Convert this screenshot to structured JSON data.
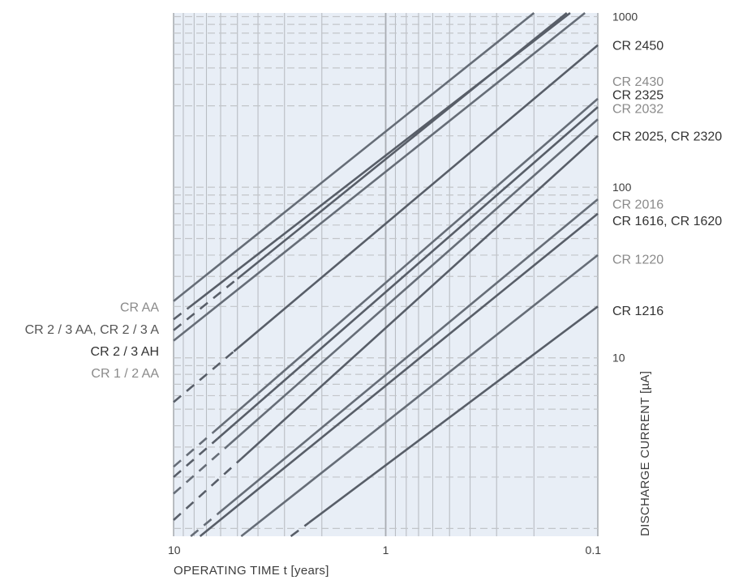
{
  "chart_data": {
    "type": "line",
    "x_scale": "log",
    "y_scale": "log",
    "x_reversed": true,
    "xlim": [
      10,
      0.1
    ],
    "ylim": [
      0.9,
      1050
    ],
    "grid": true,
    "title": "",
    "xlabel": "OPERATING TIME t [years]",
    "ylabel": "DISCHARGE CURRENT [µA]",
    "x_ticks": [
      {
        "value": 10,
        "label": "10"
      },
      {
        "value": 1,
        "label": "1"
      },
      {
        "value": 0.1,
        "label": "0.1"
      }
    ],
    "y_ticks": [
      {
        "value": 1000,
        "label": "1000"
      },
      {
        "value": 100,
        "label": "100"
      },
      {
        "value": 10,
        "label": "10"
      }
    ],
    "right_labels": [
      {
        "text": "CR 2450",
        "y": 680,
        "color": "#333333"
      },
      {
        "text": "CR 2430",
        "y": 420,
        "color": "#8a8a8a"
      },
      {
        "text": "CR 2325",
        "y": 350,
        "color": "#333333"
      },
      {
        "text": "CR 2032",
        "y": 290,
        "color": "#8a8a8a"
      },
      {
        "text": "CR 2025, CR 2320",
        "y": 200,
        "color": "#333333"
      },
      {
        "text": "CR 2016",
        "y": 80,
        "color": "#8a8a8a"
      },
      {
        "text": "CR 1616, CR 1620",
        "y": 64,
        "color": "#333333"
      },
      {
        "text": "CR 1220",
        "y": 38,
        "color": "#8a8a8a"
      },
      {
        "text": "CR 1216",
        "y": 19,
        "color": "#333333"
      }
    ],
    "left_labels": [
      {
        "text": "CR AA",
        "y": 20,
        "color": "#8a8a8a"
      },
      {
        "text": "CR 2 / 3 AA, CR 2 / 3 A",
        "y": 14.8,
        "color": "#555555"
      },
      {
        "text": "CR 2 / 3 AH",
        "y": 11,
        "color": "#333333"
      },
      {
        "text": "CR 1 / 2 AA",
        "y": 8.2,
        "color": "#8a8a8a"
      }
    ],
    "series": [
      {
        "color": "#666d77",
        "points": [
          [
            10,
            21.5
          ],
          [
            0.2,
            1050
          ]
        ],
        "dashed_until": null
      },
      {
        "color": "#585e68",
        "points": [
          [
            10,
            14.5
          ],
          [
            0.14,
            1050
          ]
        ],
        "dashed_until": 5.0
      },
      {
        "color": "#585e68",
        "points": [
          [
            10,
            16.8
          ],
          [
            0.135,
            1050
          ]
        ],
        "dashed_until": 8.5
      },
      {
        "color": "#666d77",
        "points": [
          [
            10,
            12.6
          ],
          [
            0.115,
            1050
          ]
        ],
        "dashed_until": null
      },
      {
        "color": "#585e68",
        "points": [
          [
            10,
            5.5
          ],
          [
            0.1,
            680
          ]
        ],
        "dashed_until": 5.2
      },
      {
        "color": "#666d77",
        "points": [
          [
            10,
            2.3
          ],
          [
            0.1,
            330
          ]
        ],
        "dashed_until": 6.5
      },
      {
        "color": "#585e68",
        "points": [
          [
            10,
            2.0
          ],
          [
            0.1,
            295
          ]
        ],
        "dashed_until": 6.2
      },
      {
        "color": "#666d77",
        "points": [
          [
            10,
            1.6
          ],
          [
            0.1,
            250
          ]
        ],
        "dashed_until": 5.5
      },
      {
        "color": "#585e68",
        "points": [
          [
            10,
            1.12
          ],
          [
            0.1,
            200
          ]
        ],
        "dashed_until": 4.8
      },
      {
        "color": "#666d77",
        "points": [
          [
            8.3,
            0.9
          ],
          [
            0.1,
            85
          ]
        ],
        "dashed_until": 6.2
      },
      {
        "color": "#585e68",
        "points": [
          [
            7.5,
            0.9
          ],
          [
            0.1,
            70
          ]
        ],
        "dashed_until": null
      },
      {
        "color": "#666d77",
        "points": [
          [
            4.8,
            0.9
          ],
          [
            0.1,
            40
          ]
        ],
        "dashed_until": null
      },
      {
        "color": "#585e68",
        "points": [
          [
            2.8,
            0.9
          ],
          [
            0.1,
            20
          ]
        ],
        "dashed_until": 2.3
      }
    ]
  }
}
